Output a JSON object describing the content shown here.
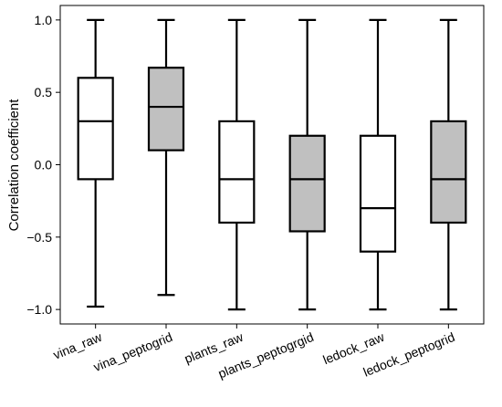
{
  "chart_data": {
    "type": "box",
    "ylabel": "Correlation coefficient",
    "ylim": [
      -1.1,
      1.1
    ],
    "yticks": [
      -1.0,
      -0.5,
      0.0,
      0.5,
      1.0
    ],
    "ytick_labels": [
      "−1.0",
      "−0.5",
      "0.0",
      "0.5",
      "1.0"
    ],
    "categories": [
      "vina_raw",
      "vina_peptogrid",
      "plants_raw",
      "plants_peptogrgid",
      "ledock_raw",
      "ledock_peptogrid"
    ],
    "boxes": [
      {
        "whisker_low": -0.98,
        "q1": -0.1,
        "median": 0.3,
        "q3": 0.6,
        "whisker_high": 1.0,
        "fill": "#ffffff"
      },
      {
        "whisker_low": -0.9,
        "q1": 0.1,
        "median": 0.4,
        "q3": 0.67,
        "whisker_high": 1.0,
        "fill": "#c0c0c0"
      },
      {
        "whisker_low": -1.0,
        "q1": -0.4,
        "median": -0.1,
        "q3": 0.3,
        "whisker_high": 1.0,
        "fill": "#ffffff"
      },
      {
        "whisker_low": -1.0,
        "q1": -0.46,
        "median": -0.1,
        "q3": 0.2,
        "whisker_high": 1.0,
        "fill": "#c0c0c0"
      },
      {
        "whisker_low": -1.0,
        "q1": -0.6,
        "median": -0.3,
        "q3": 0.2,
        "whisker_high": 1.0,
        "fill": "#ffffff"
      },
      {
        "whisker_low": -1.0,
        "q1": -0.4,
        "median": -0.1,
        "q3": 0.3,
        "whisker_high": 1.0,
        "fill": "#c0c0c0"
      }
    ],
    "grid": false,
    "colors": {
      "box_edge": "#000000",
      "highlight_fill": "#c0c0c0",
      "plain_fill": "#ffffff"
    }
  }
}
